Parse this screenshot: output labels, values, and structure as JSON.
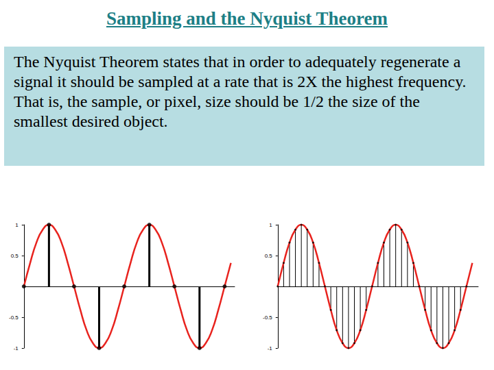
{
  "title": "Sampling and the Nyquist Theorem",
  "text": "The Nyquist Theorem states that in order to adequately regenerate a signal it should be sampled at a rate that is 2X the highest frequency. That is, the sample, or pixel, size should be 1/2 the size of the smallest desired object.",
  "chart_data": [
    {
      "type": "line",
      "xlim": [
        0,
        8.4
      ],
      "ylim": [
        -1,
        1
      ],
      "yticks": [
        -1,
        -0.5,
        0.5,
        1
      ],
      "tick_labels": "y",
      "grid": false,
      "series": [
        {
          "type": "line",
          "color": "#e8231e",
          "x": [
            0,
            0.25,
            0.5,
            0.75,
            1,
            1.25,
            1.5,
            1.75,
            2,
            2.25,
            2.5,
            2.75,
            3,
            3.25,
            3.5,
            3.75,
            4,
            4.25,
            4.5,
            4.75,
            5,
            5.25,
            5.5,
            5.75,
            6,
            6.25,
            6.5,
            6.75,
            7,
            7.25,
            7.5,
            7.75,
            8,
            8.25
          ],
          "values": [
            0,
            0.38,
            0.71,
            0.92,
            1,
            0.92,
            0.71,
            0.38,
            0,
            -0.38,
            -0.71,
            -0.92,
            -1,
            -0.92,
            -0.71,
            -0.38,
            0,
            0.38,
            0.71,
            0.92,
            1,
            0.92,
            0.71,
            0.38,
            0,
            -0.38,
            -0.71,
            -0.92,
            -1,
            -0.92,
            -0.71,
            -0.38,
            0,
            0.38
          ]
        },
        {
          "type": "stem",
          "color": "#000000",
          "marker": "circle",
          "x": [
            0,
            1,
            2,
            3,
            4,
            5,
            6,
            7,
            8
          ],
          "values": [
            0,
            1,
            0,
            -1,
            0,
            1,
            0,
            -1,
            0
          ]
        }
      ]
    },
    {
      "type": "line",
      "xlim": [
        0,
        17
      ],
      "ylim": [
        -1,
        1
      ],
      "yticks": [
        -1,
        -0.5,
        0.5,
        1
      ],
      "tick_labels": "y",
      "grid": false,
      "series": [
        {
          "type": "line",
          "color": "#e8231e",
          "x": [
            0,
            0.5,
            1,
            1.5,
            2,
            2.5,
            3,
            3.5,
            4,
            4.5,
            5,
            5.5,
            6,
            6.5,
            7,
            7.5,
            8,
            8.5,
            9,
            9.5,
            10,
            10.5,
            11,
            11.5,
            12,
            12.5,
            13,
            13.5,
            14,
            14.5,
            15,
            15.5,
            16,
            16.5
          ],
          "values": [
            0,
            0.38,
            0.71,
            0.92,
            1,
            0.92,
            0.71,
            0.38,
            0,
            -0.38,
            -0.71,
            -0.92,
            -1,
            -0.92,
            -0.71,
            -0.38,
            0,
            0.38,
            0.71,
            0.92,
            1,
            0.92,
            0.71,
            0.38,
            0,
            -0.38,
            -0.71,
            -0.92,
            -1,
            -0.92,
            -0.71,
            -0.38,
            0,
            0.38
          ]
        },
        {
          "type": "stem",
          "color": "#000000",
          "marker": "circle",
          "x": [
            0,
            0.5,
            1,
            1.5,
            2,
            2.5,
            3,
            3.5,
            4,
            4.5,
            5,
            5.5,
            6,
            6.5,
            7,
            7.5,
            8,
            8.5,
            9,
            9.5,
            10,
            10.5,
            11,
            11.5,
            12,
            12.5,
            13,
            13.5,
            14,
            14.5,
            15,
            15.5,
            16
          ],
          "values": [
            0,
            0.38,
            0.71,
            0.92,
            1,
            0.92,
            0.71,
            0.38,
            0,
            -0.38,
            -0.71,
            -0.92,
            -1,
            -0.92,
            -0.71,
            -0.38,
            0,
            0.38,
            0.71,
            0.92,
            1,
            0.92,
            0.71,
            0.38,
            0,
            -0.38,
            -0.71,
            -0.92,
            -1,
            -0.92,
            -0.71,
            -0.38,
            0
          ]
        }
      ]
    }
  ]
}
